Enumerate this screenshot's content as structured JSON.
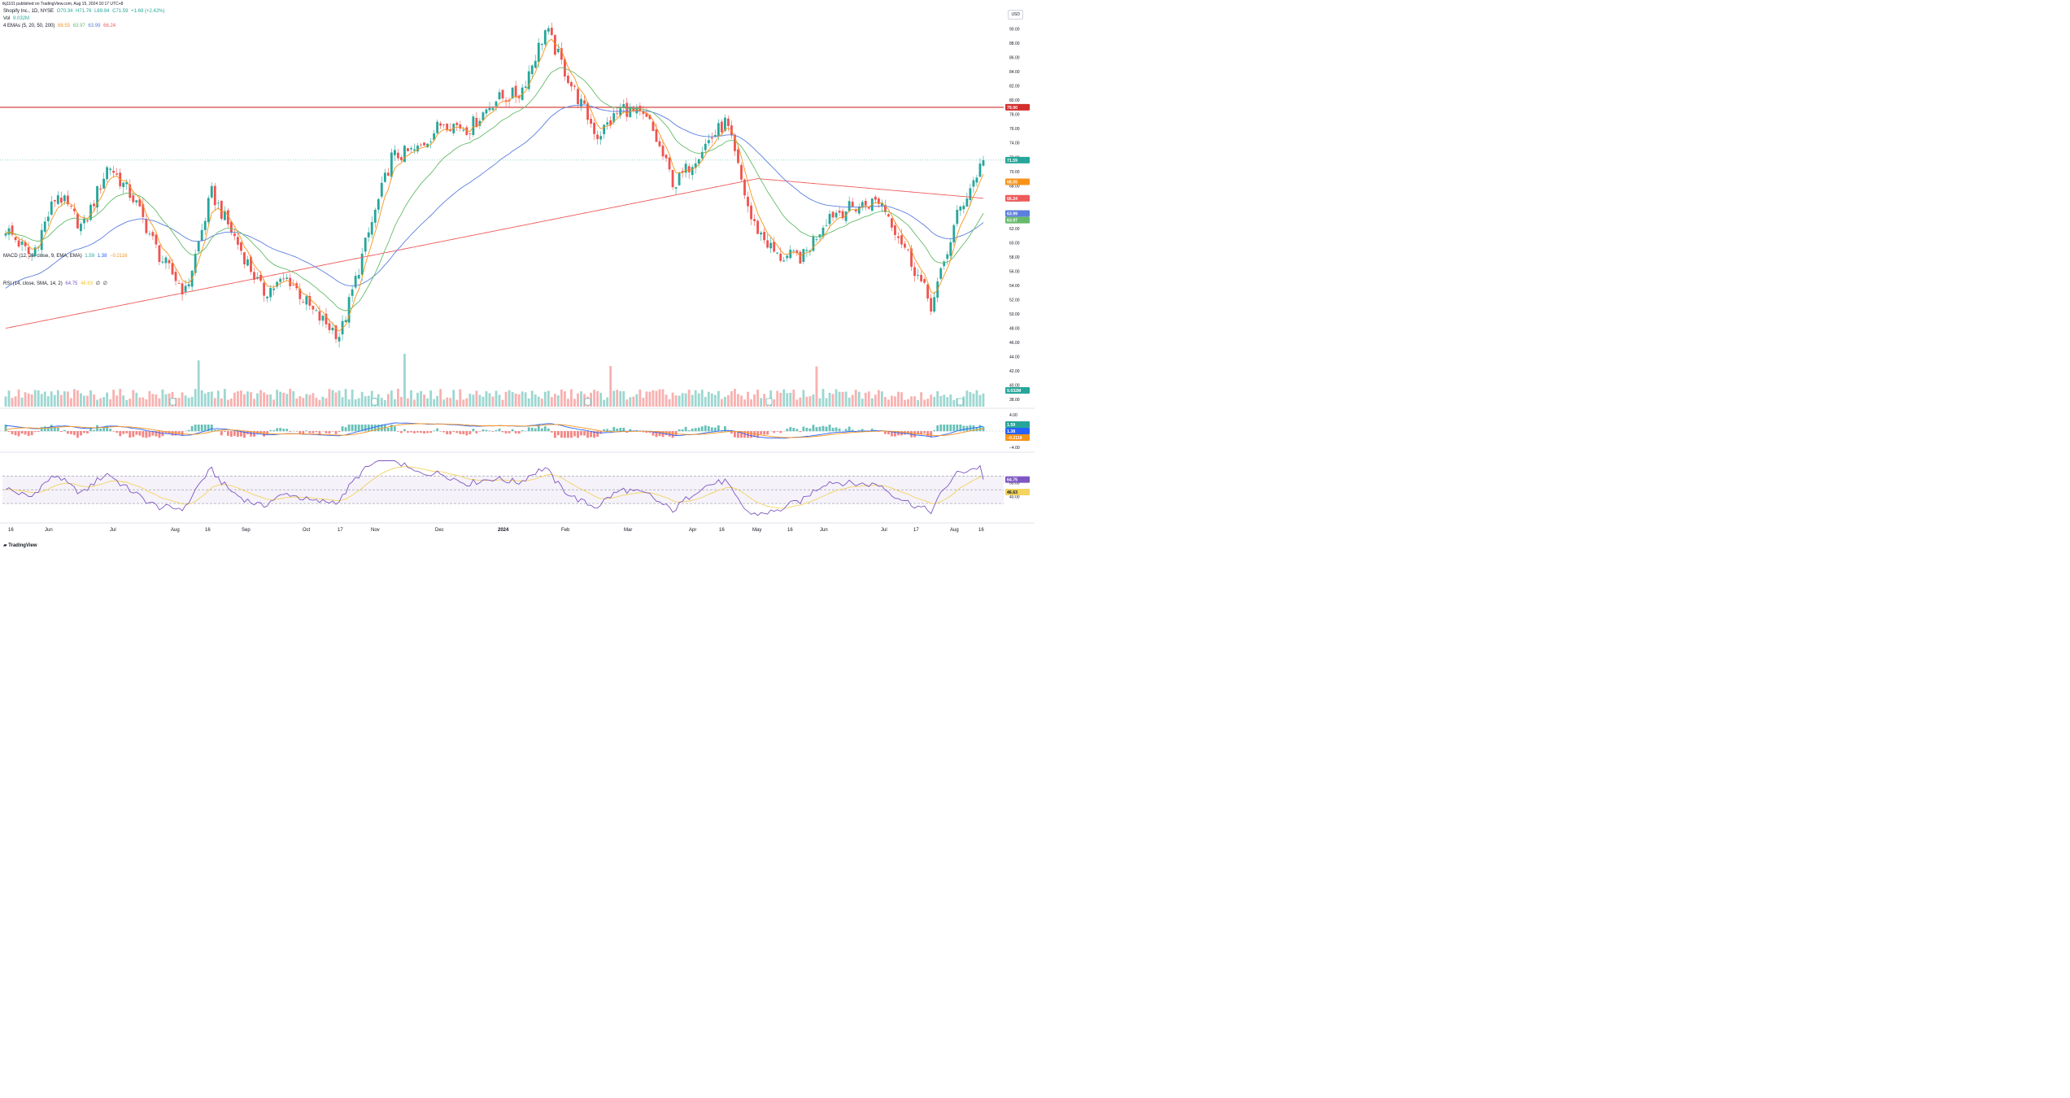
{
  "header": {
    "published": "tkj1101 published on TradingView.com, Aug 15, 2024 10:17 UTC+8"
  },
  "main": {
    "symbol": "Shopify Inc., 1D, NYSE",
    "ohlc": {
      "o": "O70.34",
      "h": "H71.76",
      "l": "L69.94",
      "c": "C71.59",
      "chg": "+1.69 (+2.42%)"
    },
    "vol_label": "Vol",
    "vol_value": "9.032M",
    "ema_label": "4 EMAs (5, 20, 50, 200)",
    "ema_values": [
      "68.55",
      "63.97",
      "63.99",
      "66.24"
    ]
  },
  "currency": "USD",
  "colors": {
    "up": "#26a69a",
    "down": "#ef5350",
    "ema5": "#f7931a",
    "ema20": "#66bb6a",
    "ema50": "#5b7fde",
    "ema200": "#ef5a5a",
    "resistance": "#d32f2f",
    "rsi": "#7e57c2",
    "rsi_ma": "#f4d35e"
  },
  "price_axis": {
    "ticks": [
      "90.00",
      "88.00",
      "86.00",
      "84.00",
      "82.00",
      "80.00",
      "78.00",
      "76.00",
      "74.00",
      "72.00",
      "70.00",
      "68.00",
      "66.00",
      "64.00",
      "62.00",
      "60.00",
      "58.00",
      "56.00",
      "54.00",
      "52.00",
      "50.00",
      "48.00",
      "46.00",
      "44.00",
      "42.00",
      "40.00",
      "38.00"
    ]
  },
  "price_badges": {
    "resistance": "79.00",
    "close": "71.59",
    "ema5": "68.55",
    "ema200": "66.24",
    "ema50": "63.99",
    "ema20": "63.97",
    "volume": "9.032M"
  },
  "macd": {
    "label": "MACD (12, 26, close, 9, EMA, EMA)",
    "values": [
      "1.59",
      "1.38",
      "−0.2116"
    ],
    "ticks": [
      "4.00",
      "0.00",
      "−4.00"
    ],
    "badges": [
      "1.59",
      "1.38",
      "−0.2116"
    ]
  },
  "rsi": {
    "label": "RSI (14, close, SMA, 14, 2)",
    "values": [
      "64.75",
      "46.63",
      "∅",
      "∅"
    ],
    "ticks": [
      "60.00",
      "40.00"
    ],
    "badges": [
      "64.75",
      "46.63"
    ]
  },
  "time_axis": [
    "16",
    "Jun",
    "Jul",
    "Aug",
    "16",
    "Sep",
    "Oct",
    "17",
    "Nov",
    "Dec",
    "2024",
    "Feb",
    "Mar",
    "Apr",
    "16",
    "May",
    "16",
    "Jun",
    "Jul",
    "17",
    "Aug",
    "16"
  ],
  "footer": {
    "brand": "TradingView"
  },
  "chart_data": {
    "type": "candlestick",
    "title": "Shopify Inc., 1D, NYSE",
    "ylim": [
      37,
      92
    ],
    "resistance_level": 79.0,
    "last_close": 71.59,
    "anchors": [
      {
        "d": "16",
        "p": 62
      },
      {
        "d": "Jun",
        "p": 58
      },
      {
        "d": "Jun 15",
        "p": 67
      },
      {
        "d": "Jul 1",
        "p": 62
      },
      {
        "d": "Jul 10",
        "p": 71
      },
      {
        "d": "Aug 1",
        "p": 66
      },
      {
        "d": "Aug 10",
        "p": 58
      },
      {
        "d": "16",
        "p": 53
      },
      {
        "d": "Sep",
        "p": 67
      },
      {
        "d": "Sep 20",
        "p": 60
      },
      {
        "d": "Oct",
        "p": 53
      },
      {
        "d": "17",
        "p": 55
      },
      {
        "d": "Oct 25",
        "p": 50
      },
      {
        "d": "Nov",
        "p": 47
      },
      {
        "d": "Nov 5",
        "p": 60
      },
      {
        "d": "Nov 20",
        "p": 72
      },
      {
        "d": "Dec",
        "p": 73
      },
      {
        "d": "Dec 15",
        "p": 77
      },
      {
        "d": "2024",
        "p": 76
      },
      {
        "d": "Jan 15",
        "p": 80
      },
      {
        "d": "Feb",
        "p": 81
      },
      {
        "d": "Feb 8",
        "p": 90
      },
      {
        "d": "Feb 15",
        "p": 82
      },
      {
        "d": "Mar",
        "p": 75
      },
      {
        "d": "Mar 20",
        "p": 79
      },
      {
        "d": "Apr",
        "p": 77
      },
      {
        "d": "16",
        "p": 68
      },
      {
        "d": "Apr 25",
        "p": 73
      },
      {
        "d": "May",
        "p": 77
      },
      {
        "d": "May 8",
        "p": 63
      },
      {
        "d": "16",
        "p": 58
      },
      {
        "d": "Jun",
        "p": 58
      },
      {
        "d": "Jun 15",
        "p": 64
      },
      {
        "d": "Jul",
        "p": 65
      },
      {
        "d": "17",
        "p": 66
      },
      {
        "d": "Jul 25",
        "p": 59
      },
      {
        "d": "Aug 5",
        "p": 51
      },
      {
        "d": "Aug 8",
        "p": 64
      },
      {
        "d": "Aug 14",
        "p": 71.59
      }
    ],
    "series": [
      {
        "name": "EMA 5",
        "last": 68.55
      },
      {
        "name": "EMA 20",
        "last": 63.97
      },
      {
        "name": "EMA 50",
        "last": 63.99
      },
      {
        "name": "EMA 200",
        "last": 66.24
      }
    ],
    "volume_last": "9.032M",
    "macd_last": [
      1.59,
      1.38,
      -0.2116
    ],
    "rsi_last": [
      64.75,
      46.63
    ]
  }
}
